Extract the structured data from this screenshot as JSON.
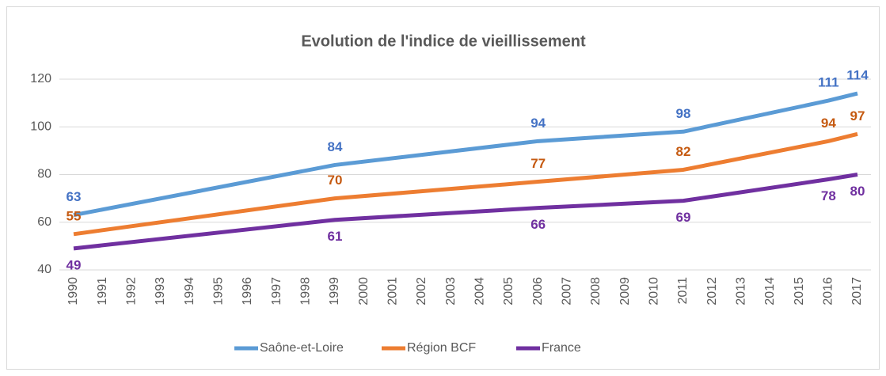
{
  "chart_data": {
    "type": "line",
    "title": "Evolution de l'indice de vieillissement",
    "x": [
      1990,
      1999,
      2006,
      2011,
      2016,
      2017
    ],
    "xlim": [
      1990,
      2017
    ],
    "xticks": [
      1990,
      1991,
      1992,
      1993,
      1994,
      1995,
      1996,
      1997,
      1998,
      1999,
      2000,
      2001,
      2002,
      2003,
      2004,
      2005,
      2006,
      2007,
      2008,
      2009,
      2010,
      2011,
      2012,
      2013,
      2014,
      2015,
      2016,
      2017
    ],
    "ylim": [
      40,
      120
    ],
    "yticks": [
      40,
      60,
      80,
      100,
      120
    ],
    "grid": true,
    "legend": "bottom",
    "series": [
      {
        "name": "Saône-et-Loire",
        "color": "#5b9bd5",
        "label_color": "#4472c4",
        "values": [
          63,
          84,
          94,
          98,
          111,
          114
        ]
      },
      {
        "name": "Région BCF",
        "color": "#ed7d31",
        "label_color": "#c55a11",
        "values": [
          55,
          70,
          77,
          82,
          94,
          97
        ]
      },
      {
        "name": "France",
        "color": "#7030a0",
        "label_color": "#7030a0",
        "values": [
          49,
          61,
          66,
          69,
          78,
          80
        ]
      }
    ]
  }
}
